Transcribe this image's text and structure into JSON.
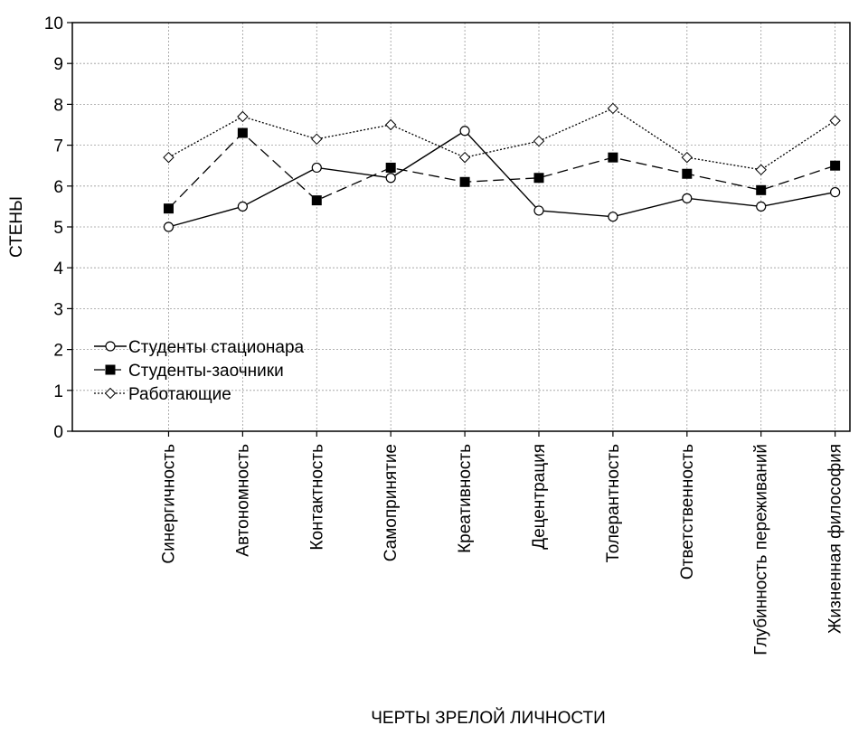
{
  "chart_data": {
    "type": "line",
    "title": "",
    "xlabel": "ЧЕРТЫ ЗРЕЛОЙ ЛИЧНОСТИ",
    "ylabel": "СТЕНЫ",
    "ylim": [
      0,
      10
    ],
    "yticks": [
      "0",
      "1",
      "2",
      "3",
      "4",
      "5",
      "6",
      "7",
      "8",
      "9",
      "10"
    ],
    "grid": true,
    "legend_position": "bottom-left",
    "categories": [
      "Синергичность",
      "Автономность",
      "Контактность",
      "Самопринятие",
      "Креативность",
      "Децентрация",
      "Толерантность",
      "Ответственность",
      "Глубинность переживаний",
      "Жизненная философия"
    ],
    "series": [
      {
        "name": "Студенты стационара",
        "marker": "open-circle",
        "line_style": "solid",
        "values": [
          5.0,
          5.5,
          6.45,
          6.2,
          7.35,
          5.4,
          5.25,
          5.7,
          5.5,
          5.85
        ]
      },
      {
        "name": "Студенты-заочники",
        "marker": "filled-square",
        "line_style": "dashed",
        "values": [
          5.45,
          7.3,
          5.65,
          6.45,
          6.1,
          6.2,
          6.7,
          6.3,
          5.9,
          6.5
        ]
      },
      {
        "name": "Работающие",
        "marker": "open-diamond",
        "line_style": "dotted",
        "values": [
          6.7,
          7.7,
          7.15,
          7.5,
          6.7,
          7.1,
          7.9,
          6.7,
          6.4,
          7.6
        ]
      }
    ]
  }
}
